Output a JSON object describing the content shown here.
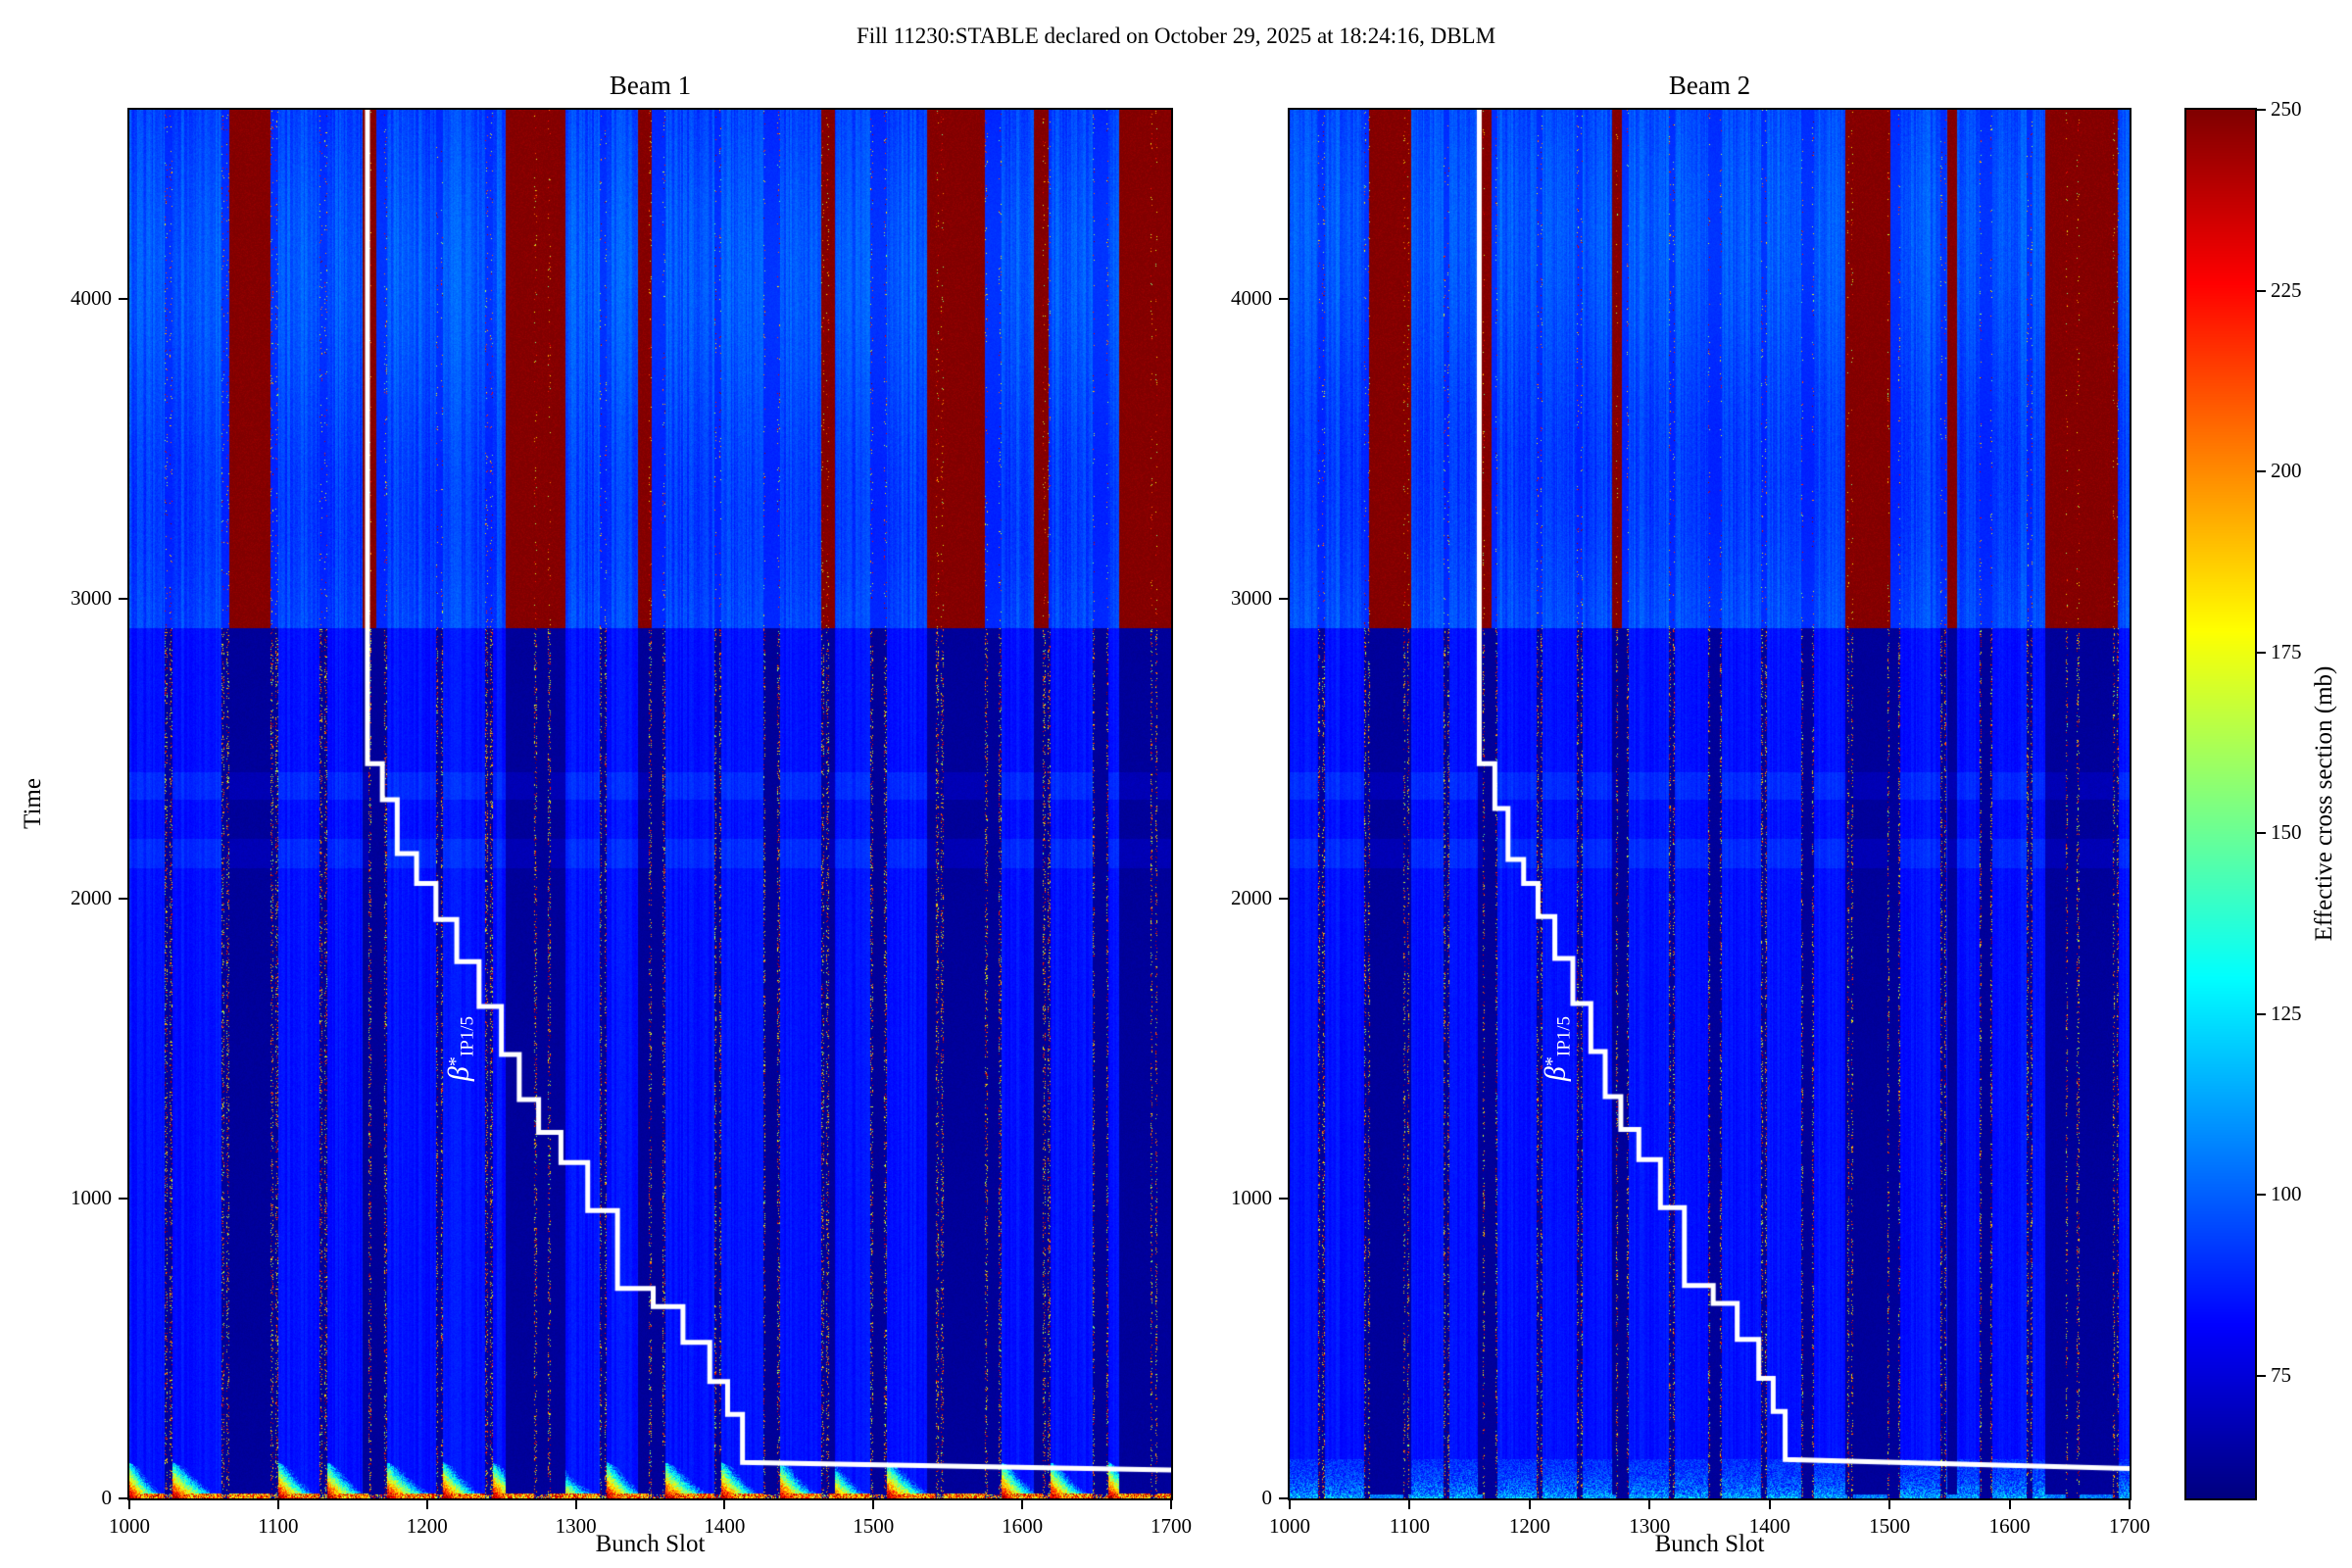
{
  "chart_data": {
    "type": "heatmap",
    "suptitle": "Fill 11230:STABLE declared on October 29, 2025 at 18:24:16, DBLM",
    "xlabel": "Bunch Slot",
    "ylabel": "Time",
    "x_range": [
      1000,
      1700
    ],
    "x_ticks": [
      1000,
      1100,
      1200,
      1300,
      1400,
      1500,
      1600,
      1700
    ],
    "y_range": [
      0,
      4630
    ],
    "y_ticks": [
      0,
      1000,
      2000,
      3000,
      4000
    ],
    "grid": false,
    "colormap": "jet",
    "legend_position": "none",
    "colorbar": {
      "label": "Effective cross section (mb)",
      "vmin": 58,
      "vmax": 250,
      "ticks": [
        75,
        100,
        125,
        150,
        175,
        200,
        225,
        250
      ]
    },
    "transition_time": 2900,
    "bottom_band_time": 130,
    "beta_symbol": "β",
    "beta_star": "*",
    "beta_sub": "IP1/5",
    "line_color": "#ffffff",
    "values": {
      "train_below": 85,
      "gap_below": 63,
      "train_above": 96,
      "gap_above": 90,
      "saturated": 250
    },
    "trains": [
      [
        1000,
        1024
      ],
      [
        1029,
        1062
      ],
      [
        1067,
        1095
      ],
      [
        1100,
        1128
      ],
      [
        1133,
        1161
      ],
      [
        1173,
        1206
      ],
      [
        1211,
        1239
      ],
      [
        1244,
        1272
      ],
      [
        1283,
        1316
      ],
      [
        1321,
        1349
      ],
      [
        1360,
        1393
      ],
      [
        1398,
        1426
      ],
      [
        1437,
        1465
      ],
      [
        1470,
        1498
      ],
      [
        1509,
        1542
      ],
      [
        1547,
        1575
      ],
      [
        1586,
        1614
      ],
      [
        1619,
        1647
      ],
      [
        1658,
        1686
      ],
      [
        1691,
        1700
      ]
    ],
    "panels": [
      {
        "id": "beam1",
        "title": "Beam 1",
        "bottom_style": "hot",
        "seed": 11,
        "saturated": [
          [
            1067,
            1095
          ],
          [
            1157,
            1166
          ],
          [
            1253,
            1293
          ],
          [
            1342,
            1351
          ],
          [
            1465,
            1474
          ],
          [
            1536,
            1575
          ],
          [
            1608,
            1618
          ],
          [
            1665,
            1700
          ]
        ],
        "step_line": [
          [
            1160,
            4630
          ],
          [
            1160,
            2450
          ],
          [
            1170,
            2450
          ],
          [
            1170,
            2330
          ],
          [
            1180,
            2330
          ],
          [
            1180,
            2150
          ],
          [
            1193,
            2150
          ],
          [
            1193,
            2050
          ],
          [
            1206,
            2050
          ],
          [
            1206,
            1930
          ],
          [
            1220,
            1930
          ],
          [
            1220,
            1790
          ],
          [
            1235,
            1790
          ],
          [
            1235,
            1640
          ],
          [
            1250,
            1640
          ],
          [
            1250,
            1480
          ],
          [
            1262,
            1480
          ],
          [
            1262,
            1330
          ],
          [
            1275,
            1330
          ],
          [
            1275,
            1220
          ],
          [
            1290,
            1220
          ],
          [
            1290,
            1120
          ],
          [
            1308,
            1120
          ],
          [
            1308,
            960
          ],
          [
            1328,
            960
          ],
          [
            1328,
            700
          ],
          [
            1352,
            700
          ],
          [
            1352,
            640
          ],
          [
            1372,
            640
          ],
          [
            1372,
            520
          ],
          [
            1390,
            520
          ],
          [
            1390,
            390
          ],
          [
            1402,
            390
          ],
          [
            1402,
            280
          ],
          [
            1412,
            280
          ],
          [
            1412,
            120
          ],
          [
            1700,
            95
          ]
        ]
      },
      {
        "id": "beam2",
        "title": "Beam 2",
        "bottom_style": "cool",
        "seed": 23,
        "saturated": [
          [
            1066,
            1101
          ],
          [
            1157,
            1168
          ],
          [
            1269,
            1277
          ],
          [
            1463,
            1501
          ],
          [
            1548,
            1556
          ],
          [
            1630,
            1690
          ]
        ],
        "step_line": [
          [
            1158,
            4630
          ],
          [
            1158,
            2450
          ],
          [
            1171,
            2450
          ],
          [
            1171,
            2300
          ],
          [
            1182,
            2300
          ],
          [
            1182,
            2130
          ],
          [
            1195,
            2130
          ],
          [
            1195,
            2050
          ],
          [
            1207,
            2050
          ],
          [
            1207,
            1940
          ],
          [
            1221,
            1940
          ],
          [
            1221,
            1800
          ],
          [
            1236,
            1800
          ],
          [
            1236,
            1650
          ],
          [
            1251,
            1650
          ],
          [
            1251,
            1490
          ],
          [
            1263,
            1490
          ],
          [
            1263,
            1340
          ],
          [
            1276,
            1340
          ],
          [
            1276,
            1230
          ],
          [
            1291,
            1230
          ],
          [
            1291,
            1130
          ],
          [
            1309,
            1130
          ],
          [
            1309,
            970
          ],
          [
            1329,
            970
          ],
          [
            1329,
            710
          ],
          [
            1353,
            710
          ],
          [
            1353,
            650
          ],
          [
            1373,
            650
          ],
          [
            1373,
            530
          ],
          [
            1391,
            530
          ],
          [
            1391,
            400
          ],
          [
            1403,
            400
          ],
          [
            1403,
            290
          ],
          [
            1413,
            290
          ],
          [
            1413,
            130
          ],
          [
            1700,
            100
          ]
        ]
      }
    ]
  }
}
